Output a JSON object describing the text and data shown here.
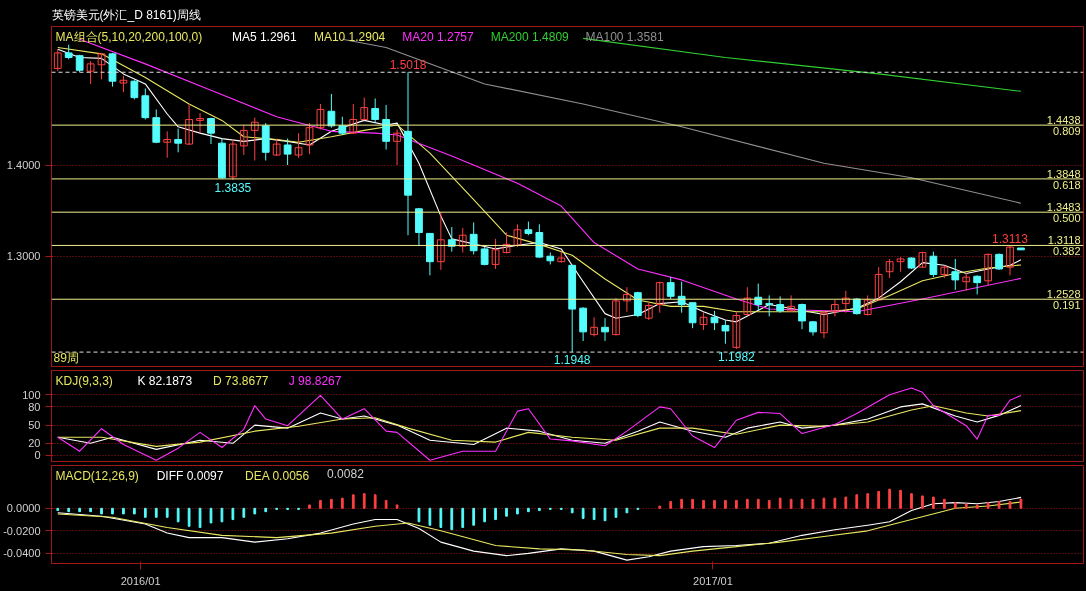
{
  "chart_data": [
    {
      "type": "candlestick",
      "title": "英镑美元(外汇_D 8161)周线",
      "legend_title": "MA组合(5,10,20,200,100,0)",
      "legend": "top",
      "grid": "y",
      "tick_labels": "y",
      "xlim": [
        "2015-11-05",
        "2017-08-26"
      ],
      "ylim": [
        1.179,
        1.552
      ],
      "yticks": [
        {
          "value": 1.4,
          "label": "1.4000"
        },
        {
          "value": 1.3,
          "label": "1.3000"
        }
      ],
      "x": [
        "2015-11-09",
        "2015-11-16",
        "2015-11-23",
        "2015-11-30",
        "2015-12-07",
        "2015-12-14",
        "2015-12-21",
        "2015-12-28",
        "2016-01-04",
        "2016-01-11",
        "2016-01-18",
        "2016-01-25",
        "2016-02-01",
        "2016-02-08",
        "2016-02-15",
        "2016-02-22",
        "2016-02-29",
        "2016-03-07",
        "2016-03-14",
        "2016-03-21",
        "2016-03-28",
        "2016-04-04",
        "2016-04-11",
        "2016-04-18",
        "2016-04-25",
        "2016-05-02",
        "2016-05-09",
        "2016-05-16",
        "2016-05-23",
        "2016-05-30",
        "2016-06-06",
        "2016-06-13",
        "2016-06-20",
        "2016-06-27",
        "2016-07-04",
        "2016-07-11",
        "2016-07-18",
        "2016-07-25",
        "2016-08-01",
        "2016-08-08",
        "2016-08-15",
        "2016-08-22",
        "2016-08-29",
        "2016-09-05",
        "2016-09-12",
        "2016-09-19",
        "2016-09-26",
        "2016-10-03",
        "2016-10-10",
        "2016-10-17",
        "2016-10-24",
        "2016-10-31",
        "2016-11-07",
        "2016-11-14",
        "2016-11-21",
        "2016-11-28",
        "2016-12-05",
        "2016-12-12",
        "2016-12-19",
        "2016-12-26",
        "2017-01-02",
        "2017-01-09",
        "2017-01-16",
        "2017-01-23",
        "2017-01-30",
        "2017-02-06",
        "2017-02-13",
        "2017-02-20",
        "2017-02-27",
        "2017-03-06",
        "2017-03-13",
        "2017-03-20",
        "2017-03-27",
        "2017-04-03",
        "2017-04-10",
        "2017-04-17",
        "2017-04-24",
        "2017-05-01",
        "2017-05-08",
        "2017-05-15",
        "2017-05-22",
        "2017-05-29",
        "2017-06-05",
        "2017-06-12",
        "2017-06-19",
        "2017-06-26",
        "2017-07-03",
        "2017-07-10",
        "2017-07-17"
      ],
      "ohlc": [
        [
          1.506,
          1.527,
          1.503,
          1.523
        ],
        [
          1.523,
          1.532,
          1.516,
          1.518
        ],
        [
          1.52,
          1.521,
          1.502,
          1.504
        ],
        [
          1.503,
          1.514,
          1.489,
          1.511
        ],
        [
          1.51,
          1.523,
          1.494,
          1.522
        ],
        [
          1.522,
          1.523,
          1.486,
          1.492
        ],
        [
          1.49,
          1.498,
          1.48,
          1.493
        ],
        [
          1.492,
          1.493,
          1.472,
          1.474
        ],
        [
          1.476,
          1.484,
          1.45,
          1.452
        ],
        [
          1.452,
          1.461,
          1.424,
          1.425
        ],
        [
          1.425,
          1.437,
          1.408,
          1.428
        ],
        [
          1.428,
          1.44,
          1.414,
          1.424
        ],
        [
          1.423,
          1.467,
          1.422,
          1.45
        ],
        [
          1.449,
          1.457,
          1.435,
          1.451
        ],
        [
          1.451,
          1.452,
          1.423,
          1.435
        ],
        [
          1.424,
          1.429,
          1.385,
          1.386
        ],
        [
          1.387,
          1.428,
          1.3835,
          1.423
        ],
        [
          1.421,
          1.444,
          1.411,
          1.438
        ],
        [
          1.438,
          1.452,
          1.405,
          1.447
        ],
        [
          1.443,
          1.446,
          1.405,
          1.414
        ],
        [
          1.411,
          1.429,
          1.41,
          1.423
        ],
        [
          1.422,
          1.429,
          1.4,
          1.412
        ],
        [
          1.411,
          1.435,
          1.408,
          1.419
        ],
        [
          1.422,
          1.446,
          1.412,
          1.441
        ],
        [
          1.441,
          1.467,
          1.439,
          1.461
        ],
        [
          1.459,
          1.478,
          1.441,
          1.443
        ],
        [
          1.443,
          1.453,
          1.433,
          1.435
        ],
        [
          1.435,
          1.467,
          1.434,
          1.45
        ],
        [
          1.45,
          1.474,
          1.449,
          1.463
        ],
        [
          1.462,
          1.473,
          1.447,
          1.45
        ],
        [
          1.45,
          1.466,
          1.417,
          1.426
        ],
        [
          1.426,
          1.439,
          1.4,
          1.435
        ],
        [
          1.437,
          1.5018,
          1.323,
          1.367
        ],
        [
          1.352,
          1.353,
          1.311,
          1.326
        ],
        [
          1.325,
          1.325,
          1.279,
          1.294
        ],
        [
          1.294,
          1.348,
          1.285,
          1.318
        ],
        [
          1.318,
          1.332,
          1.305,
          1.311
        ],
        [
          1.311,
          1.331,
          1.304,
          1.323
        ],
        [
          1.324,
          1.337,
          1.302,
          1.306
        ],
        [
          1.308,
          1.31,
          1.29,
          1.291
        ],
        [
          1.291,
          1.319,
          1.286,
          1.307
        ],
        [
          1.304,
          1.326,
          1.303,
          1.313
        ],
        [
          1.312,
          1.335,
          1.31,
          1.329
        ],
        [
          1.329,
          1.338,
          1.323,
          1.325
        ],
        [
          1.326,
          1.335,
          1.298,
          1.299
        ],
        [
          1.3,
          1.304,
          1.291,
          1.295
        ],
        [
          1.294,
          1.305,
          1.293,
          1.298
        ],
        [
          1.29,
          1.29,
          1.1948,
          1.242
        ],
        [
          1.243,
          1.244,
          1.207,
          1.217
        ],
        [
          1.214,
          1.233,
          1.212,
          1.222
        ],
        [
          1.222,
          1.232,
          1.207,
          1.217
        ],
        [
          1.214,
          1.254,
          1.213,
          1.251
        ],
        [
          1.251,
          1.266,
          1.239,
          1.258
        ],
        [
          1.26,
          1.261,
          1.233,
          1.235
        ],
        [
          1.232,
          1.25,
          1.23,
          1.246
        ],
        [
          1.247,
          1.272,
          1.238,
          1.271
        ],
        [
          1.271,
          1.277,
          1.253,
          1.256
        ],
        [
          1.256,
          1.272,
          1.238,
          1.247
        ],
        [
          1.249,
          1.249,
          1.221,
          1.227
        ],
        [
          1.225,
          1.239,
          1.219,
          1.233
        ],
        [
          1.233,
          1.24,
          1.219,
          1.227
        ],
        [
          1.224,
          1.23,
          1.204,
          1.218
        ],
        [
          1.2,
          1.239,
          1.1982,
          1.235
        ],
        [
          1.236,
          1.266,
          1.235,
          1.254
        ],
        [
          1.255,
          1.27,
          1.24,
          1.247
        ],
        [
          1.248,
          1.257,
          1.234,
          1.247
        ],
        [
          1.247,
          1.256,
          1.238,
          1.24
        ],
        [
          1.24,
          1.257,
          1.239,
          1.245
        ],
        [
          1.247,
          1.248,
          1.22,
          1.229
        ],
        [
          1.228,
          1.229,
          1.213,
          1.217
        ],
        [
          1.216,
          1.24,
          1.21,
          1.238
        ],
        [
          1.239,
          1.252,
          1.234,
          1.247
        ],
        [
          1.248,
          1.262,
          1.238,
          1.254
        ],
        [
          1.253,
          1.254,
          1.236,
          1.237
        ],
        [
          1.236,
          1.257,
          1.235,
          1.252
        ],
        [
          1.252,
          1.288,
          1.251,
          1.28
        ],
        [
          1.283,
          1.297,
          1.276,
          1.294
        ],
        [
          1.294,
          1.299,
          1.283,
          1.297
        ],
        [
          1.298,
          1.299,
          1.286,
          1.287
        ],
        [
          1.288,
          1.305,
          1.287,
          1.304
        ],
        [
          1.3,
          1.305,
          1.277,
          1.28
        ],
        [
          1.28,
          1.29,
          1.276,
          1.288
        ],
        [
          1.283,
          1.297,
          1.263,
          1.274
        ],
        [
          1.272,
          1.282,
          1.262,
          1.277
        ],
        [
          1.278,
          1.279,
          1.258,
          1.271
        ],
        [
          1.273,
          1.303,
          1.268,
          1.302
        ],
        [
          1.302,
          1.303,
          1.285,
          1.286
        ],
        [
          1.288,
          1.3113,
          1.279,
          1.31
        ],
        [
          1.309,
          1.309,
          1.307,
          1.307
        ]
      ],
      "colors": [
        "#ff4040",
        "#54fcfc",
        "#54fcfc",
        "#ff4040",
        "#ff4040",
        "#54fcfc",
        "#ff4040",
        "#54fcfc",
        "#54fcfc",
        "#54fcfc",
        "#ff4040",
        "#54fcfc",
        "#ff4040",
        "#ff4040",
        "#54fcfc",
        "#54fcfc",
        "#ff4040",
        "#ff4040",
        "#ff4040",
        "#54fcfc",
        "#ff4040",
        "#54fcfc",
        "#ff4040",
        "#ff4040",
        "#ff4040",
        "#54fcfc",
        "#54fcfc",
        "#ff4040",
        "#ff4040",
        "#54fcfc",
        "#54fcfc",
        "#ff4040",
        "#54fcfc",
        "#54fcfc",
        "#54fcfc",
        "#ff4040",
        "#54fcfc",
        "#ff4040",
        "#54fcfc",
        "#54fcfc",
        "#ff4040",
        "#ff4040",
        "#ff4040",
        "#54fcfc",
        "#54fcfc",
        "#54fcfc",
        "#ff4040",
        "#54fcfc",
        "#54fcfc",
        "#ff4040",
        "#54fcfc",
        "#ff4040",
        "#ff4040",
        "#54fcfc",
        "#ff4040",
        "#ff4040",
        "#54fcfc",
        "#54fcfc",
        "#54fcfc",
        "#ff4040",
        "#54fcfc",
        "#54fcfc",
        "#ff4040",
        "#ff4040",
        "#54fcfc",
        "#54fcfc",
        "#54fcfc",
        "#ff4040",
        "#54fcfc",
        "#54fcfc",
        "#ff4040",
        "#ff4040",
        "#ff4040",
        "#54fcfc",
        "#ff4040",
        "#ff4040",
        "#ff4040",
        "#ff4040",
        "#54fcfc",
        "#ff4040",
        "#54fcfc",
        "#ff4040",
        "#54fcfc",
        "#ff4040",
        "#54fcfc",
        "#ff4040",
        "#54fcfc",
        "#ff4040",
        "#54fcfc"
      ],
      "series": [
        {
          "name": "MA5 1.2961",
          "type": "line",
          "color": "#ffffff",
          "x": [
            "2015-11-09",
            "2015-11-23",
            "2015-12-07",
            "2015-12-21",
            "2016-01-04",
            "2016-01-18",
            "2016-01-25",
            "2016-02-08",
            "2016-02-22",
            "2016-03-07",
            "2016-03-21",
            "2016-04-04",
            "2016-04-18",
            "2016-05-02",
            "2016-05-23",
            "2016-06-06",
            "2016-06-13",
            "2016-06-27",
            "2016-07-11",
            "2016-07-18",
            "2016-08-01",
            "2016-08-15",
            "2016-08-29",
            "2016-09-12",
            "2016-09-26",
            "2016-10-10",
            "2016-10-24",
            "2016-10-31",
            "2016-11-14",
            "2016-11-28",
            "2016-12-12",
            "2016-12-26",
            "2017-01-09",
            "2017-01-16",
            "2017-02-06",
            "2017-02-27",
            "2017-03-13",
            "2017-04-03",
            "2017-04-17",
            "2017-05-01",
            "2017-05-15",
            "2017-05-29",
            "2017-06-12",
            "2017-06-26",
            "2017-07-10",
            "2017-07-17"
          ],
          "values": [
            1.527,
            1.518,
            1.517,
            1.5,
            1.489,
            1.456,
            1.442,
            1.435,
            1.429,
            1.426,
            1.429,
            1.426,
            1.422,
            1.437,
            1.449,
            1.444,
            1.446,
            1.402,
            1.344,
            1.319,
            null,
            1.308,
            1.312,
            1.315,
            1.308,
            1.272,
            1.237,
            1.232,
            1.236,
            1.248,
            1.25,
            1.239,
            1.23,
            1.228,
            1.247,
            null,
            1.236,
            1.243,
            1.254,
            1.272,
            1.293,
            1.29,
            1.281,
            1.286,
            1.29,
            1.2961
          ]
        },
        {
          "name": "MA10 1.2904",
          "type": "line",
          "color": "#e8e860",
          "x": [
            "2015-11-09",
            "2015-12-07",
            "2016-01-04",
            "2016-02-01",
            "2016-02-22",
            "2016-03-07",
            "2016-03-28",
            "2016-04-11",
            "2016-05-02",
            "2016-05-23",
            "2016-06-13",
            "2016-07-04",
            "2016-08-01",
            "2016-08-22",
            "2016-09-12",
            "2016-10-03",
            "2016-10-24",
            "2016-11-14",
            "2016-12-05",
            "2016-12-26",
            "2017-01-16",
            "2017-02-13",
            "2017-03-13",
            "2017-04-03",
            "2017-04-24",
            "2017-05-15",
            "2017-06-05",
            "2017-06-26",
            "2017-07-17"
          ],
          "values": [
            1.529,
            1.522,
            1.496,
            1.467,
            1.449,
            1.431,
            1.428,
            1.425,
            1.431,
            1.438,
            1.444,
            1.413,
            1.362,
            1.323,
            1.313,
            1.301,
            1.275,
            1.252,
            1.245,
            1.245,
            1.239,
            null,
            1.239,
            1.242,
            1.257,
            1.273,
            1.281,
            1.287,
            1.2904
          ]
        },
        {
          "name": "MA20 1.2757",
          "type": "line",
          "color": "#ff30ff",
          "x": [
            "2015-11-23",
            "2016-01-04",
            "2016-02-15",
            "2016-03-28",
            "2016-05-02",
            "2016-05-30",
            "2016-06-13",
            "2016-07-18",
            "2016-08-29",
            "2016-09-26",
            "2016-10-17",
            "2016-11-14",
            "2016-12-12",
            "2017-01-16",
            "2017-02-06",
            "2017-04-03",
            "2017-05-15",
            "2017-07-17"
          ],
          "values": [
            1.538,
            1.511,
            1.482,
            1.453,
            1.437,
            1.435,
            1.433,
            1.41,
            1.38,
            1.355,
            1.315,
            1.286,
            1.274,
            1.253,
            1.242,
            1.239,
            1.253,
            1.2757
          ]
        },
        {
          "name": "MA200 1.4809",
          "type": "line",
          "color": "#30d030",
          "x": [
            "2016-10-10",
            "2017-01-09",
            "2017-04-17",
            "2017-07-17"
          ],
          "values": [
            1.539,
            1.518,
            1.5,
            1.4809
          ]
        },
        {
          "name": "MA100 1.3581",
          "type": "line",
          "color": "#909090",
          "x": [
            "2016-05-09",
            "2016-06-06",
            "2016-08-08",
            "2016-10-10",
            "2016-12-12",
            "2017-03-13",
            "2017-05-08",
            "2017-07-17"
          ],
          "values": [
            1.538,
            1.529,
            1.489,
            1.467,
            1.442,
            1.402,
            1.386,
            1.3581
          ]
        }
      ],
      "ref_lines": [
        {
          "axis": "y",
          "value": 1.5018,
          "color": "#e0e0e0",
          "line_style": "dashed"
        },
        {
          "axis": "y",
          "value": 1.4438,
          "label": "1.4438",
          "color": "#f0f08c"
        },
        {
          "axis": "y",
          "value": 1.3848,
          "label": "1.3848",
          "color": "#f0f08c"
        },
        {
          "axis": "y",
          "value": 1.3483,
          "label": "1.3483",
          "color": "#f0f08c"
        },
        {
          "axis": "y",
          "value": 1.3118,
          "label": "1.3118",
          "color": "#f0f08c"
        },
        {
          "axis": "y",
          "value": 1.2528,
          "label": "1.2528",
          "color": "#f0f08c"
        },
        {
          "axis": "y",
          "value": 1.1948,
          "color": "#e0e0e0",
          "line_style": "dashed"
        }
      ],
      "annotations": [
        {
          "text": "1.5018",
          "x": "2016-06-20",
          "y": 1.5018
        },
        {
          "text": "1.3835",
          "x": "2016-02-29",
          "y": 1.3835
        },
        {
          "text": "1.1948",
          "x": "2016-10-03",
          "y": 1.1948
        },
        {
          "text": "1.1982",
          "x": "2017-01-16",
          "y": 1.1982
        },
        {
          "text": "1.3113",
          "x": "2017-07-10",
          "y": 1.3113
        },
        {
          "text": "0.809",
          "y": 1.4438
        },
        {
          "text": "0.618",
          "y": 1.3848
        },
        {
          "text": "0.500",
          "y": 1.3483
        },
        {
          "text": "0.382",
          "y": 1.3118
        },
        {
          "text": "0.191",
          "y": 1.2528
        },
        "89周"
      ]
    },
    {
      "type": "line",
      "legend_title": "KDJ(9,3,3)",
      "legend": "top left",
      "grid": "y",
      "tick_labels": "y",
      "xlim": [
        "2015-11-05",
        "2017-08-26"
      ],
      "ylim": [
        -10,
        140
      ],
      "yticks": [
        0,
        20,
        50,
        80,
        100
      ],
      "series": [
        {
          "name": "K 82.1873",
          "color": "#ffffff",
          "x": [
            "2015-11-09",
            "2015-11-30",
            "2015-12-14",
            "2016-01-11",
            "2016-02-08",
            "2016-02-29",
            "2016-03-14",
            "2016-04-04",
            "2016-04-25",
            "2016-05-09",
            "2016-05-23",
            "2016-06-13",
            "2016-07-04",
            "2016-08-01",
            "2016-08-22",
            "2016-09-12",
            "2016-10-03",
            "2016-10-24",
            "2016-11-14",
            "2016-11-28",
            "2016-12-19",
            "2017-01-09",
            "2017-01-23",
            "2017-02-13",
            "2017-02-27",
            "2017-03-20",
            "2017-04-10",
            "2017-05-01",
            "2017-05-15",
            "2017-06-05",
            "2017-06-19",
            "2017-07-03",
            "2017-07-17"
          ],
          "values": [
            30,
            20,
            30,
            10,
            25,
            20,
            50,
            45,
            70,
            60,
            65,
            50,
            25,
            18,
            45,
            40,
            25,
            20,
            40,
            55,
            40,
            30,
            45,
            55,
            45,
            50,
            60,
            80,
            85,
            65,
            55,
            66,
            82.1873
          ]
        },
        {
          "name": "D 73.8677",
          "color": "#e8e860",
          "x": [
            "2015-11-09",
            "2015-12-07",
            "2016-01-11",
            "2016-02-08",
            "2016-03-14",
            "2016-04-11",
            "2016-05-09",
            "2016-05-30",
            "2016-06-20",
            "2016-07-18",
            "2016-08-15",
            "2016-09-05",
            "2016-10-03",
            "2016-10-31",
            "2016-11-28",
            "2016-12-19",
            "2017-01-16",
            "2017-02-13",
            "2017-03-13",
            "2017-04-10",
            "2017-05-08",
            "2017-05-22",
            "2017-06-12",
            "2017-06-26",
            "2017-07-17"
          ],
          "values": [
            30,
            30,
            15,
            22,
            40,
            48,
            60,
            62,
            45,
            25,
            22,
            38,
            30,
            25,
            45,
            45,
            35,
            50,
            48,
            55,
            75,
            82,
            70,
            65,
            73.8677
          ]
        },
        {
          "name": "J 98.8267",
          "color": "#ff30ff",
          "x": [
            "2015-11-09",
            "2015-11-23",
            "2015-12-07",
            "2015-12-21",
            "2016-01-11",
            "2016-01-25",
            "2016-02-08",
            "2016-02-22",
            "2016-03-07",
            "2016-03-14",
            "2016-03-21",
            "2016-04-04",
            "2016-04-25",
            "2016-05-09",
            "2016-05-23",
            "2016-06-06",
            "2016-06-13",
            "2016-07-04",
            "2016-07-25",
            "2016-08-15",
            "2016-08-29",
            "2016-09-05",
            "2016-09-19",
            "2016-10-03",
            "2016-10-24",
            "2016-11-07",
            "2016-11-28",
            "2016-12-05",
            "2016-12-19",
            "2017-01-02",
            "2017-01-16",
            "2017-01-30",
            "2017-02-13",
            "2017-02-27",
            "2017-03-20",
            "2017-04-03",
            "2017-04-24",
            "2017-05-08",
            "2017-05-15",
            "2017-05-22",
            "2017-06-12",
            "2017-06-19",
            "2017-06-26",
            "2017-07-03",
            "2017-07-10",
            "2017-07-17"
          ],
          "values": [
            30,
            7,
            44,
            18,
            -8,
            12,
            38,
            13,
            43,
            82,
            60,
            49,
            99,
            60,
            77,
            40,
            38,
            -8,
            7,
            7,
            73,
            77,
            27,
            24,
            16,
            40,
            80,
            77,
            32,
            13,
            58,
            71,
            69,
            36,
            51,
            69,
            100,
            111,
            104,
            82,
            49,
            27,
            66,
            66,
            91,
            98.8267
          ]
        }
      ]
    },
    {
      "type": "bar",
      "legend_title": "MACD(12,26,9)",
      "legend": "top left",
      "grid": "y",
      "xlim": [
        "2015-11-05",
        "2017-08-26"
      ],
      "ylim": [
        -0.049,
        0.038
      ],
      "xticks": [
        {
          "value": "2016-01-01",
          "label": "2016/01"
        },
        {
          "value": "2017-01-01",
          "label": "2017/01"
        }
      ],
      "yticks": [
        {
          "value": 0,
          "label": "0.0000"
        },
        {
          "value": -0.02,
          "label": "-0.0200"
        },
        {
          "value": -0.04,
          "label": "-0.0400"
        }
      ],
      "x": [
        "2015-11-09",
        "2015-11-16",
        "2015-11-23",
        "2015-11-30",
        "2015-12-07",
        "2015-12-14",
        "2015-12-21",
        "2015-12-28",
        "2016-01-04",
        "2016-01-11",
        "2016-01-18",
        "2016-01-25",
        "2016-02-01",
        "2016-02-08",
        "2016-02-15",
        "2016-02-22",
        "2016-02-29",
        "2016-03-07",
        "2016-03-14",
        "2016-03-21",
        "2016-03-28",
        "2016-04-04",
        "2016-04-11",
        "2016-04-18",
        "2016-04-25",
        "2016-05-02",
        "2016-05-09",
        "2016-05-16",
        "2016-05-23",
        "2016-05-30",
        "2016-06-06",
        "2016-06-13",
        "2016-06-20",
        "2016-06-27",
        "2016-07-04",
        "2016-07-11",
        "2016-07-18",
        "2016-07-25",
        "2016-08-01",
        "2016-08-08",
        "2016-08-15",
        "2016-08-22",
        "2016-08-29",
        "2016-09-05",
        "2016-09-12",
        "2016-09-19",
        "2016-09-26",
        "2016-10-03",
        "2016-10-10",
        "2016-10-17",
        "2016-10-24",
        "2016-10-31",
        "2016-11-07",
        "2016-11-14",
        "2016-11-21",
        "2016-11-28",
        "2016-12-05",
        "2016-12-12",
        "2016-12-19",
        "2016-12-26",
        "2017-01-02",
        "2017-01-09",
        "2017-01-16",
        "2017-01-23",
        "2017-01-30",
        "2017-02-06",
        "2017-02-13",
        "2017-02-20",
        "2017-02-27",
        "2017-03-06",
        "2017-03-13",
        "2017-03-20",
        "2017-03-27",
        "2017-04-03",
        "2017-04-10",
        "2017-04-17",
        "2017-04-24",
        "2017-05-01",
        "2017-05-08",
        "2017-05-15",
        "2017-05-22",
        "2017-05-29",
        "2017-06-05",
        "2017-06-12",
        "2017-06-19",
        "2017-06-26",
        "2017-07-03",
        "2017-07-10",
        "2017-07-17"
      ],
      "series": [
        {
          "name": "DIFF 0.0097",
          "type": "line",
          "color": "#ffffff",
          "x": [
            "2015-11-09",
            "2015-12-07",
            "2016-01-04",
            "2016-01-18",
            "2016-02-01",
            "2016-02-22",
            "2016-03-14",
            "2016-04-04",
            "2016-04-25",
            "2016-05-16",
            "2016-05-30",
            "2016-06-13",
            "2016-06-27",
            "2016-07-11",
            "2016-08-01",
            "2016-08-22",
            "2016-09-05",
            "2016-09-26",
            "2016-10-17",
            "2016-11-07",
            "2016-11-21",
            "2016-12-05",
            "2016-12-26",
            "2017-01-16",
            "2017-02-06",
            "2017-02-27",
            "2017-03-20",
            "2017-04-10",
            "2017-04-24",
            "2017-05-08",
            "2017-05-22",
            "2017-06-05",
            "2017-06-19",
            "2017-07-03",
            "2017-07-17"
          ],
          "values": [
            -0.004,
            -0.007,
            -0.014,
            -0.022,
            -0.026,
            -0.026,
            -0.03,
            -0.027,
            -0.022,
            -0.014,
            -0.01,
            -0.01,
            -0.018,
            -0.03,
            -0.038,
            -0.042,
            -0.04,
            -0.036,
            -0.038,
            -0.046,
            -0.043,
            -0.038,
            -0.034,
            -0.033,
            -0.031,
            -0.024,
            -0.019,
            -0.015,
            -0.012,
            -0.002,
            0.004,
            0.005,
            0.004,
            0.006,
            0.0097
          ]
        },
        {
          "name": "DEA 0.0056",
          "type": "line",
          "color": "#e8e860",
          "x": [
            "2015-11-09",
            "2015-12-14",
            "2016-01-18",
            "2016-02-22",
            "2016-03-28",
            "2016-05-02",
            "2016-05-30",
            "2016-06-20",
            "2016-07-11",
            "2016-08-15",
            "2016-09-12",
            "2016-10-10",
            "2016-11-07",
            "2016-11-28",
            "2016-12-19",
            "2017-01-16",
            "2017-02-13",
            "2017-03-13",
            "2017-04-10",
            "2017-05-08",
            "2017-06-05",
            "2017-06-26",
            "2017-07-17"
          ],
          "values": [
            -0.005,
            -0.008,
            -0.017,
            -0.024,
            -0.026,
            -0.022,
            -0.016,
            -0.013,
            -0.02,
            -0.033,
            -0.036,
            -0.037,
            -0.041,
            -0.042,
            -0.038,
            -0.034,
            -0.03,
            -0.025,
            -0.02,
            -0.01,
            0.0,
            0.002,
            0.0056
          ]
        },
        {
          "name": "0.0082",
          "type": "bar",
          "values": [
            -0.002,
            -0.003,
            -0.003,
            -0.003,
            -0.005,
            -0.005,
            -0.005,
            -0.005,
            -0.008,
            -0.008,
            -0.008,
            -0.012,
            -0.016,
            -0.017,
            -0.013,
            -0.012,
            -0.01,
            -0.008,
            -0.005,
            -0.003,
            -0.001,
            -0.001,
            -0.001,
            0.003,
            0.007,
            0.008,
            0.009,
            0.012,
            0.013,
            0.012,
            0.007,
            0.003,
            null,
            -0.012,
            -0.015,
            -0.017,
            -0.019,
            -0.017,
            -0.015,
            -0.012,
            -0.01,
            -0.007,
            -0.005,
            -0.003,
            -0.002,
            -0.001,
            -0.001,
            -0.004,
            -0.009,
            -0.01,
            -0.011,
            -0.008,
            -0.004,
            -0.001,
            null,
            0.002,
            0.006,
            0.008,
            0.008,
            0.007,
            0.007,
            0.007,
            0.007,
            0.008,
            0.008,
            0.007,
            0.009,
            0.008,
            0.008,
            0.008,
            0.009,
            0.009,
            0.01,
            0.012,
            0.013,
            0.015,
            0.017,
            0.016,
            0.013,
            0.011,
            0.01,
            0.008,
            0.005,
            0.004,
            0.003,
            0.005,
            0.006,
            0.006,
            0.0082
          ],
          "colors": [
            "#54fcfc",
            "#54fcfc",
            "#54fcfc",
            "#54fcfc",
            "#54fcfc",
            "#54fcfc",
            "#54fcfc",
            "#54fcfc",
            "#54fcfc",
            "#54fcfc",
            "#54fcfc",
            "#54fcfc",
            "#54fcfc",
            "#54fcfc",
            "#54fcfc",
            "#54fcfc",
            "#54fcfc",
            "#54fcfc",
            "#54fcfc",
            "#54fcfc",
            "#54fcfc",
            "#54fcfc",
            "#54fcfc",
            "#ff4040",
            "#ff4040",
            "#ff4040",
            "#ff4040",
            "#ff4040",
            "#ff4040",
            "#ff4040",
            "#ff4040",
            "#ff4040",
            "#ff4040",
            "#54fcfc",
            "#54fcfc",
            "#54fcfc",
            "#54fcfc",
            "#54fcfc",
            "#54fcfc",
            "#54fcfc",
            "#54fcfc",
            "#54fcfc",
            "#54fcfc",
            "#54fcfc",
            "#54fcfc",
            "#54fcfc",
            "#54fcfc",
            "#54fcfc",
            "#54fcfc",
            "#54fcfc",
            "#54fcfc",
            "#54fcfc",
            "#54fcfc",
            "#54fcfc",
            "#54fcfc",
            "#ff4040",
            "#ff4040",
            "#ff4040",
            "#ff4040",
            "#ff4040",
            "#ff4040",
            "#ff4040",
            "#ff4040",
            "#ff4040",
            "#ff4040",
            "#ff4040",
            "#ff4040",
            "#ff4040",
            "#ff4040",
            "#ff4040",
            "#ff4040",
            "#ff4040",
            "#ff4040",
            "#ff4040",
            "#ff4040",
            "#ff4040",
            "#ff4040",
            "#ff4040",
            "#ff4040",
            "#ff4040",
            "#ff4040",
            "#ff4040",
            "#ff4040",
            "#ff4040",
            "#ff4040",
            "#ff4040",
            "#ff4040",
            "#ff4040",
            "#ff4040"
          ]
        }
      ]
    }
  ]
}
